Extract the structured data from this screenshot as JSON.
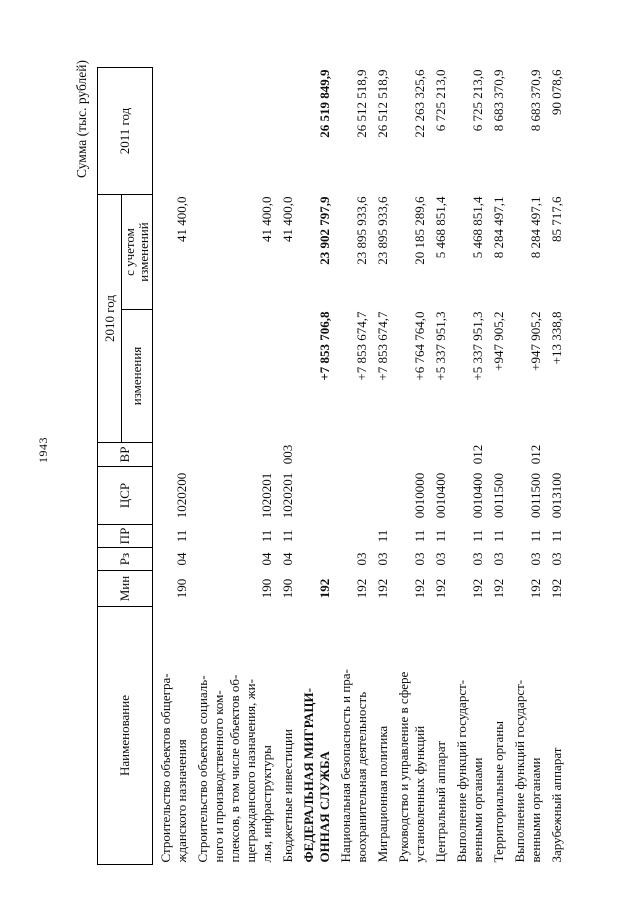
{
  "page": {
    "number": "1943",
    "caption": "Сумма (тыс. рублей)"
  },
  "table": {
    "headers": {
      "name": "Наименование",
      "min": "Мин",
      "rz": "Рз",
      "pr": "ПР",
      "csr": "ЦСР",
      "vr": "ВР",
      "y2010": "2010 год",
      "izm": "изменения",
      "uchet": "с учетом\nизменений",
      "y2011": "2011 год"
    },
    "rows": [
      {
        "name": "Строительство объектов общегра-\nжданского назначения",
        "min": "190",
        "rz": "04",
        "pr": "11",
        "csr": "1020200",
        "vr": "",
        "izm": "",
        "uchet": "41 400,0",
        "y2011": "",
        "bold": false
      },
      {
        "name": "Строительство объектов социаль-\nного и производственного ком-\nплексов, в том числе объектов об-\nщегражданского назначения, жи-\nлья, инфраструктуры",
        "min": "190",
        "rz": "04",
        "pr": "11",
        "csr": "1020201",
        "vr": "",
        "izm": "",
        "uchet": "41 400,0",
        "y2011": "",
        "bold": false
      },
      {
        "name": "Бюджетные инвестиции",
        "min": "190",
        "rz": "04",
        "pr": "11",
        "csr": "1020201",
        "vr": "003",
        "izm": "",
        "uchet": "41 400,0",
        "y2011": "",
        "bold": false
      },
      {
        "name": "ФЕДЕРАЛЬНАЯ МИГРАЦИ-\nОННАЯ СЛУЖБА",
        "min": "192",
        "rz": "",
        "pr": "",
        "csr": "",
        "vr": "",
        "izm": "+7 853 706,8",
        "uchet": "23 902 797,9",
        "y2011": "26 519 849,9",
        "bold": true
      },
      {
        "name": "Национальная безопасность и пра-\nвоохранительная деятельность",
        "min": "192",
        "rz": "03",
        "pr": "",
        "csr": "",
        "vr": "",
        "izm": "+7 853 674,7",
        "uchet": "23 895 933,6",
        "y2011": "26 512 518,9",
        "bold": false
      },
      {
        "name": "Миграционная политика",
        "min": "192",
        "rz": "03",
        "pr": "11",
        "csr": "",
        "vr": "",
        "izm": "+7 853 674,7",
        "uchet": "23 895 933,6",
        "y2011": "26 512 518,9",
        "bold": false
      },
      {
        "name": "Руководство и управление в сфере\nустановленных функций",
        "min": "192",
        "rz": "03",
        "pr": "11",
        "csr": "0010000",
        "vr": "",
        "izm": "+6 764 764,0",
        "uchet": "20 185 289,6",
        "y2011": "22 263 325,6",
        "bold": false
      },
      {
        "name": "Центральный аппарат",
        "min": "192",
        "rz": "03",
        "pr": "11",
        "csr": "0010400",
        "vr": "",
        "izm": "+5 337 951,3",
        "uchet": "5 468 851,4",
        "y2011": "6 725 213,0",
        "bold": false
      },
      {
        "name": "Выполнение функций государст-\nвенными органами",
        "min": "192",
        "rz": "03",
        "pr": "11",
        "csr": "0010400",
        "vr": "012",
        "izm": "+5 337 951,3",
        "uchet": "5 468 851,4",
        "y2011": "6 725 213,0",
        "bold": false
      },
      {
        "name": "Территориальные органы",
        "min": "192",
        "rz": "03",
        "pr": "11",
        "csr": "0011500",
        "vr": "",
        "izm": "+947 905,2",
        "uchet": "8 284 497,1",
        "y2011": "8 683 370,9",
        "bold": false
      },
      {
        "name": "Выполнение функций государст-\nвенными органами",
        "min": "192",
        "rz": "03",
        "pr": "11",
        "csr": "0011500",
        "vr": "012",
        "izm": "+947 905,2",
        "uchet": "8 284 497,1",
        "y2011": "8 683 370,9",
        "bold": false
      },
      {
        "name": "Зарубежный аппарат",
        "min": "192",
        "rz": "03",
        "pr": "11",
        "csr": "0013100",
        "vr": "",
        "izm": "+13 338,8",
        "uchet": "85 717,6",
        "y2011": "90 078,6",
        "bold": false
      }
    ]
  }
}
